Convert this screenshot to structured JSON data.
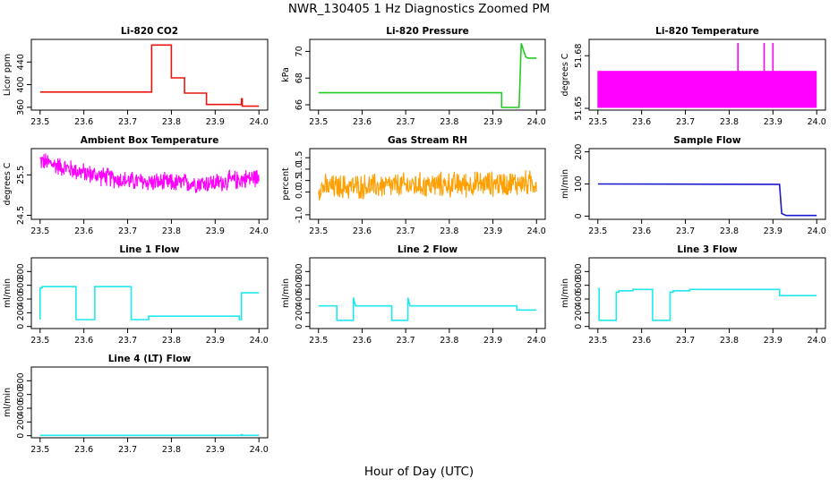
{
  "page": {
    "title": "NWR_130405  1 Hz Diagnostics Zoomed PM",
    "xlabel": "Hour of Day (UTC)"
  },
  "chart_data": [
    {
      "type": "line",
      "title": "Li-820 CO2",
      "ylabel": "Licor ppm",
      "color": "#e8160e",
      "xlim": [
        23.5,
        24.0
      ],
      "ylim": [
        355,
        480
      ],
      "x_ticks": [
        "23.5",
        "23.6",
        "23.7",
        "23.8",
        "23.9",
        "24.0"
      ],
      "y_ticks": [
        360,
        400,
        440
      ],
      "series": [
        {
          "x": [
            23.5,
            23.755,
            23.755,
            23.8,
            23.8,
            23.83,
            23.83,
            23.88,
            23.88,
            23.96,
            23.96,
            23.962,
            23.962,
            24.0
          ],
          "y": [
            387,
            387,
            470,
            470,
            412,
            412,
            385,
            385,
            365,
            365,
            375,
            375,
            362,
            362
          ]
        }
      ]
    },
    {
      "type": "line",
      "title": "Li-820 Pressure",
      "ylabel": "kPa",
      "color": "#22cc22",
      "xlim": [
        23.5,
        24.0
      ],
      "ylim": [
        65.6,
        70.9
      ],
      "x_ticks": [
        "23.5",
        "23.6",
        "23.7",
        "23.8",
        "23.9",
        "24.0"
      ],
      "y_ticks": [
        66,
        68,
        70
      ],
      "series": [
        {
          "x": [
            23.5,
            23.92,
            23.92,
            23.96,
            23.965,
            23.975,
            23.98,
            24.0
          ],
          "y": [
            66.9,
            66.9,
            65.8,
            65.8,
            70.6,
            69.6,
            69.5,
            69.5
          ]
        }
      ]
    },
    {
      "type": "line",
      "title": "Li-820 Temperature",
      "ylabel": "degrees C",
      "color": "#ff00ff",
      "xlim": [
        23.5,
        24.0
      ],
      "ylim": [
        51.649,
        51.6893
      ],
      "x_ticks": [
        "23.5",
        "23.6",
        "23.7",
        "23.8",
        "23.9",
        "24.0"
      ],
      "y_ticks": [
        51.65,
        51.68
      ],
      "y_tick_labels": [
        "51.65",
        "51.68"
      ],
      "noise_band": [
        51.6503,
        51.6713
      ],
      "spikes": [
        23.82,
        23.88,
        23.9
      ],
      "spike_top": 51.6873
    },
    {
      "type": "line",
      "title": "Ambient Box Temperature",
      "ylabel": "degrees C",
      "color": "#ff00ff",
      "xlim": [
        23.5,
        24.0
      ],
      "ylim": [
        24.4,
        26.15
      ],
      "x_ticks": [
        "23.5",
        "23.6",
        "23.7",
        "23.8",
        "23.9",
        "24.0"
      ],
      "y_ticks": [
        24.5,
        25.5
      ],
      "y_tick_labels": [
        "24.5",
        "25.5"
      ],
      "trend": {
        "x": [
          23.5,
          23.6,
          23.7,
          23.8,
          23.9,
          24.0
        ],
        "y": [
          25.85,
          25.55,
          25.35,
          25.3,
          25.3,
          25.45
        ]
      },
      "noise": 0.28
    },
    {
      "type": "line",
      "title": "Gas Stream RH",
      "ylabel": "percent",
      "color": "#ff9f00",
      "xlim": [
        23.5,
        24.0
      ],
      "ylim": [
        -1.2,
        1.9
      ],
      "x_ticks": [
        "23.5",
        "23.6",
        "23.7",
        "23.8",
        "23.9",
        "24.0"
      ],
      "y_ticks": [
        -1.0,
        0.0,
        0.5,
        1.0,
        1.5
      ],
      "y_tick_labels": [
        "-1.0",
        "0.0",
        "0.5",
        "1.0",
        "1.5"
      ],
      "trend": {
        "x": [
          23.5,
          23.75,
          24.0
        ],
        "y": [
          0.2,
          0.3,
          0.4
        ]
      },
      "noise": 0.65
    },
    {
      "type": "line",
      "title": "Sample Flow",
      "ylabel": "ml/min",
      "color": "#1a1acc",
      "xlim": [
        23.5,
        24.0
      ],
      "ylim": [
        -10,
        210
      ],
      "x_ticks": [
        "23.5",
        "23.6",
        "23.7",
        "23.8",
        "23.9",
        "24.0"
      ],
      "y_ticks": [
        0,
        100,
        200
      ],
      "series": [
        {
          "x": [
            23.5,
            23.915,
            23.92,
            23.93,
            24.0
          ],
          "y": [
            100,
            99,
            8,
            2,
            2
          ]
        }
      ]
    },
    {
      "type": "line",
      "title": "Line 1 Flow",
      "ylabel": "ml/min",
      "color": "#22e8ee",
      "xlim": [
        23.5,
        24.0
      ],
      "ylim": [
        -30,
        1000
      ],
      "x_ticks": [
        "23.5",
        "23.6",
        "23.7",
        "23.8",
        "23.9",
        "24.0"
      ],
      "y_ticks": [
        0,
        200,
        400,
        600,
        800
      ],
      "series": [
        {
          "x": [
            23.5,
            23.5,
            23.505,
            23.505,
            23.582,
            23.582,
            23.625,
            23.625,
            23.708,
            23.708,
            23.748,
            23.748,
            23.955,
            23.955,
            23.96,
            23.96,
            24.0
          ],
          "y": [
            100,
            560,
            560,
            580,
            580,
            100,
            100,
            580,
            580,
            100,
            100,
            150,
            150,
            100,
            100,
            490,
            490
          ]
        }
      ]
    },
    {
      "type": "line",
      "title": "Line 2 Flow",
      "ylabel": "ml/min",
      "color": "#22e8ee",
      "xlim": [
        23.5,
        24.0
      ],
      "ylim": [
        -30,
        1000
      ],
      "x_ticks": [
        "23.5",
        "23.6",
        "23.7",
        "23.8",
        "23.9",
        "24.0"
      ],
      "y_ticks": [
        0,
        200,
        400,
        600,
        800
      ],
      "series": [
        {
          "x": [
            23.5,
            23.542,
            23.542,
            23.58,
            23.58,
            23.585,
            23.585,
            23.668,
            23.668,
            23.705,
            23.705,
            23.71,
            23.71,
            23.955,
            23.955,
            24.0
          ],
          "y": [
            300,
            300,
            90,
            90,
            420,
            300,
            300,
            300,
            90,
            90,
            420,
            300,
            300,
            300,
            240,
            240
          ]
        }
      ]
    },
    {
      "type": "line",
      "title": "Line 3 Flow",
      "ylabel": "ml/min",
      "color": "#22e8ee",
      "xlim": [
        23.5,
        24.0
      ],
      "ylim": [
        -30,
        1000
      ],
      "x_ticks": [
        "23.5",
        "23.6",
        "23.7",
        "23.8",
        "23.9",
        "24.0"
      ],
      "y_ticks": [
        0,
        200,
        400,
        600,
        800
      ],
      "series": [
        {
          "x": [
            23.5,
            23.5,
            23.503,
            23.503,
            23.542,
            23.542,
            23.548,
            23.548,
            23.58,
            23.58,
            23.625,
            23.625,
            23.665,
            23.665,
            23.672,
            23.672,
            23.71,
            23.71,
            23.915,
            23.915,
            24.0
          ],
          "y": [
            550,
            550,
            550,
            90,
            90,
            500,
            500,
            520,
            520,
            540,
            540,
            90,
            90,
            500,
            500,
            520,
            520,
            540,
            540,
            450,
            450
          ]
        }
      ]
    },
    {
      "type": "line",
      "title": "Line 4 (LT) Flow",
      "ylabel": "ml/min",
      "color": "#22e8ee",
      "xlim": [
        23.5,
        24.0
      ],
      "ylim": [
        -30,
        1000
      ],
      "x_ticks": [
        "23.5",
        "23.6",
        "23.7",
        "23.8",
        "23.9",
        "24.0"
      ],
      "y_ticks": [
        0,
        200,
        400,
        600,
        800
      ],
      "series": [
        {
          "x": [
            23.5,
            23.96,
            23.96,
            23.962,
            23.962,
            24.0
          ],
          "y": [
            5,
            5,
            15,
            15,
            5,
            5
          ]
        }
      ]
    }
  ]
}
